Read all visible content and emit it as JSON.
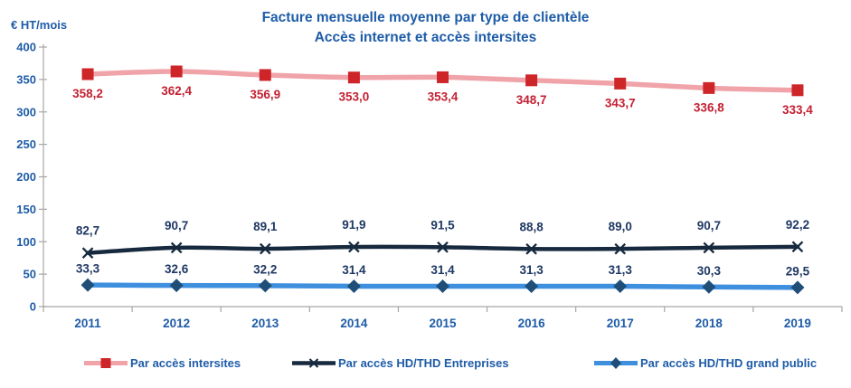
{
  "title": {
    "line1": "Facture mensuelle moyenne par type de clientèle",
    "line2": "Accès internet et accès intersites"
  },
  "y_axis_unit": "€ HT/mois",
  "colors": {
    "title_text": "#1E5CA8",
    "axis_text": "#1E5CA8",
    "axis_line": "#A6A6A6"
  },
  "chart_data": {
    "type": "line",
    "title": "Facture mensuelle moyenne par type de clientèle — Accès internet et accès intersites",
    "categories": [
      "2011",
      "2012",
      "2013",
      "2014",
      "2015",
      "2016",
      "2017",
      "2018",
      "2019"
    ],
    "series": [
      {
        "name": "Par accès intersites",
        "values": [
          358.2,
          362.4,
          356.9,
          353.0,
          353.4,
          348.7,
          343.7,
          336.8,
          333.4
        ],
        "labels": [
          "358,2",
          "362,4",
          "356,9",
          "353,0",
          "353,4",
          "348,7",
          "343,7",
          "336,8",
          "333,4"
        ],
        "line_color": "#F0A3A9",
        "marker": "square",
        "marker_color": "#CE2529",
        "label_color": "#C32032",
        "label_position": "below"
      },
      {
        "name": "Par accès HD/THD Entreprises",
        "values": [
          82.7,
          90.7,
          89.1,
          91.9,
          91.5,
          88.8,
          89.0,
          90.7,
          92.2
        ],
        "labels": [
          "82,7",
          "90,7",
          "89,1",
          "91,9",
          "91,5",
          "88,8",
          "89,0",
          "90,7",
          "92,2"
        ],
        "line_color": "#16293E",
        "marker": "x",
        "marker_color": "#16293E",
        "label_color": "#1F3864",
        "label_position": "above"
      },
      {
        "name": "Par accès HD/THD grand public",
        "values": [
          33.3,
          32.6,
          32.2,
          31.4,
          31.4,
          31.3,
          31.3,
          30.3,
          29.5
        ],
        "labels": [
          "33,3",
          "32,6",
          "32,2",
          "31,4",
          "31,4",
          "31,3",
          "31,3",
          "30,3",
          "29,5"
        ],
        "line_color": "#3F8FDF",
        "marker": "diamond",
        "marker_color": "#1F4E79",
        "label_color": "#1F3864",
        "label_position": "above"
      }
    ],
    "ylabel": "€ HT/mois",
    "ylim": [
      0,
      400
    ],
    "ytick_step": 50,
    "grid": false,
    "legend_position": "bottom"
  }
}
